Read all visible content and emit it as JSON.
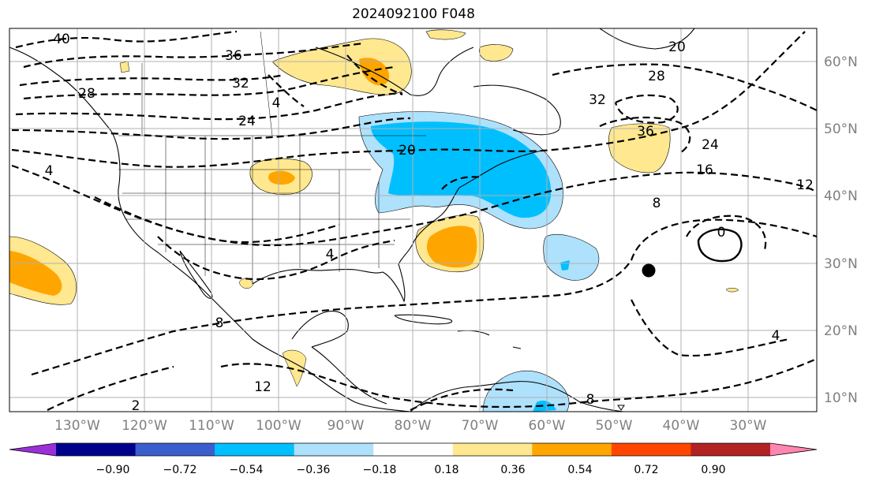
{
  "title": "2024092100 F048",
  "lon_ticks": [
    "130°W",
    "120°W",
    "110°W",
    "100°W",
    "90°W",
    "80°W",
    "70°W",
    "60°W",
    "50°W",
    "40°W",
    "30°W"
  ],
  "lat_ticks": [
    "60°N",
    "50°N",
    "40°N",
    "30°N",
    "20°N",
    "10°N"
  ],
  "colorbar": {
    "ticks": [
      "−0.90",
      "−0.72",
      "−0.54",
      "−0.36",
      "−0.18",
      "0.18",
      "0.36",
      "0.54",
      "0.72",
      "0.90"
    ],
    "colors": [
      "#9b30d9",
      "#00008b",
      "#3a5fcd",
      "#00bfff",
      "#aee1fb",
      "#ffffff",
      "#ffe88f",
      "#ffa500",
      "#ff4500",
      "#b22222",
      "#ff86b0"
    ]
  },
  "contour_labels": [
    "40",
    "36",
    "32",
    "28",
    "24",
    "20",
    "4",
    "20",
    "28",
    "32",
    "36",
    "24",
    "16",
    "12",
    "8",
    "0",
    "4",
    "8",
    "12",
    "2",
    "4",
    "8",
    "4"
  ],
  "marker": "black-dot"
}
